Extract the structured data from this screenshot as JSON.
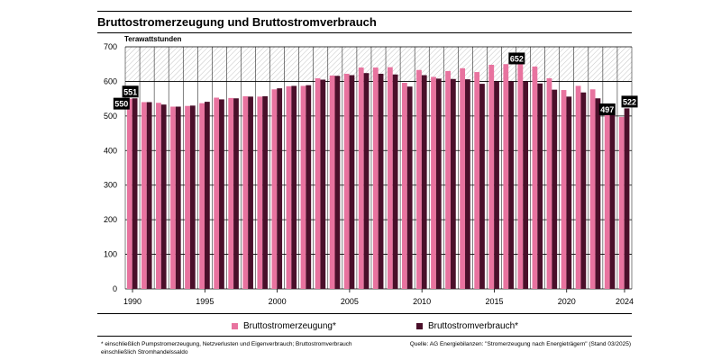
{
  "title": "Bruttostromerzeugung und Bruttostromverbrauch",
  "footnote": {
    "line1": "* einschließlich Pumpstromerzeugung, Netzverlusten und Eigenverbrauch; Bruttostromverbrauch",
    "line2": "einschließlich Stromhandelssaldo"
  },
  "source": "Quelle: AG Energiebilanzen: \"Stromerzeugung nach Energieträgern\" (Stand 03/2025)",
  "colors": {
    "erzeugung": "#e8739f",
    "verbrauch": "#4a0f2a",
    "label_bg": "#000000"
  },
  "chart_data": {
    "type": "bar",
    "title": "Bruttostromerzeugung und Bruttostromverbrauch",
    "ylabel": "Terawattstunden",
    "xlabel": "",
    "ylim": [
      0,
      700
    ],
    "yticks": [
      0,
      100,
      200,
      300,
      400,
      500,
      600,
      700
    ],
    "xtick_labels": [
      "1990",
      "1995",
      "2000",
      "2005",
      "2010",
      "2015",
      "2020",
      "2024"
    ],
    "grid": true,
    "legend_position": "bottom",
    "categories": [
      1990,
      1991,
      1992,
      1993,
      1994,
      1995,
      1996,
      1997,
      1998,
      1999,
      2000,
      2001,
      2002,
      2003,
      2004,
      2005,
      2006,
      2007,
      2008,
      2009,
      2010,
      2011,
      2012,
      2013,
      2014,
      2015,
      2016,
      2017,
      2018,
      2019,
      2020,
      2021,
      2022,
      2023,
      2024
    ],
    "series": [
      {
        "name": "Bruttostromerzeugung*",
        "values": [
          550,
          540,
          538,
          527,
          529,
          537,
          553,
          552,
          557,
          556,
          577,
          586,
          587,
          609,
          617,
          622,
          640,
          640,
          641,
          596,
          633,
          613,
          630,
          638,
          627,
          648,
          650,
          652,
          643,
          609,
          575,
          587,
          577,
          510,
          497
        ]
      },
      {
        "name": "Bruttostromverbrauch*",
        "values": [
          551,
          540,
          533,
          527,
          530,
          541,
          548,
          551,
          556,
          557,
          580,
          587,
          589,
          605,
          616,
          618,
          624,
          622,
          620,
          585,
          618,
          608,
          607,
          606,
          593,
          600,
          600,
          600,
          594,
          576,
          556,
          568,
          551,
          525,
          522
        ]
      }
    ],
    "annotations": [
      {
        "label": "550",
        "year": 1990,
        "series": "Bruttostromerzeugung*"
      },
      {
        "label": "551",
        "year": 1990,
        "series": "Bruttostromverbrauch*"
      },
      {
        "label": "652",
        "year": 2017,
        "series": "Bruttostromerzeugung*"
      },
      {
        "label": "497",
        "year": 2024,
        "series": "Bruttostromerzeugung*"
      },
      {
        "label": "522",
        "year": 2024,
        "series": "Bruttostromverbrauch*"
      }
    ]
  }
}
